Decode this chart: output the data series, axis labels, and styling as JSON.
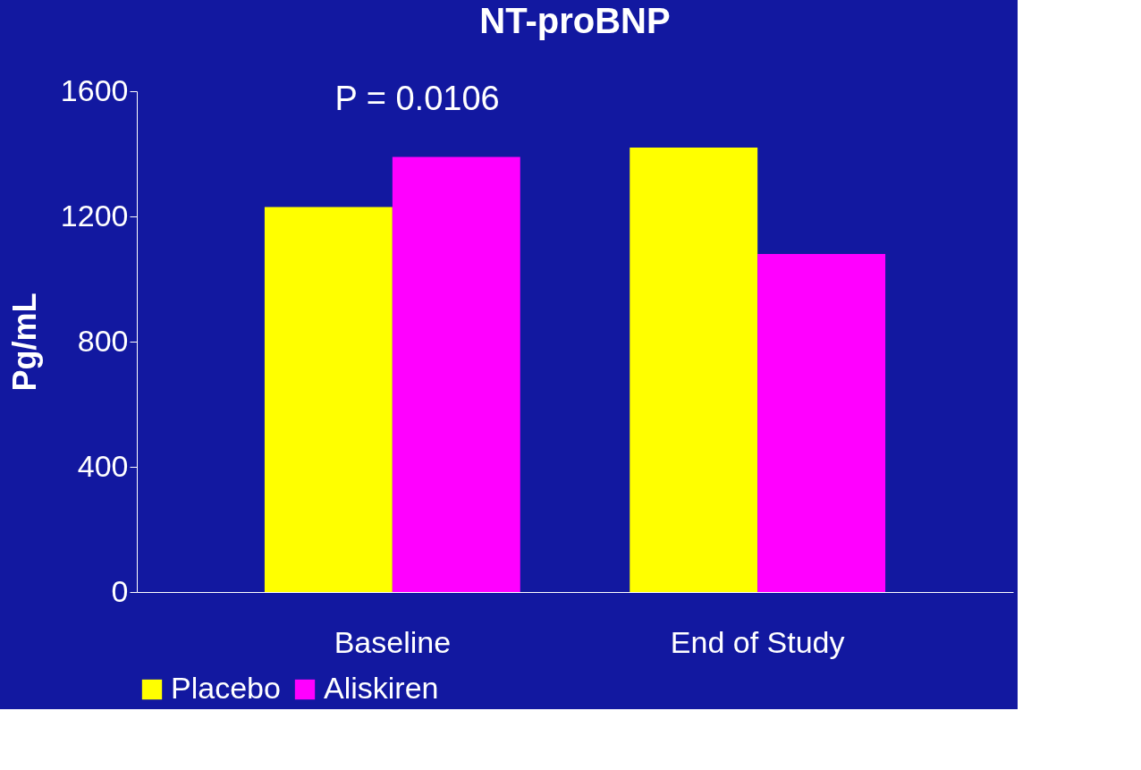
{
  "chart_data": {
    "type": "bar",
    "title": "NT-proBNP",
    "ylabel": "Pg/mL",
    "categories": [
      "Baseline",
      "End of Study"
    ],
    "series": [
      {
        "name": "Placebo",
        "color": "#ffff00",
        "values": [
          1230,
          1420
        ]
      },
      {
        "name": "Aliskiren",
        "color": "#ff00ff",
        "values": [
          1390,
          1080
        ]
      }
    ],
    "ylim": [
      0,
      1600
    ],
    "yticks": [
      0,
      400,
      800,
      1200,
      1600
    ],
    "grid": false,
    "legend": "bottom",
    "annotations": [
      "P = 0.0106"
    ]
  }
}
